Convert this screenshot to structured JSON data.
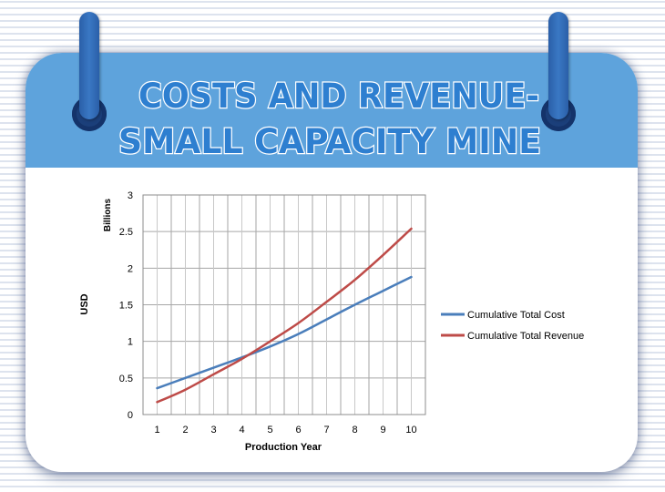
{
  "title": {
    "line1": "COSTS AND REVENUE-",
    "line2": "SMALL CAPACITY MINE"
  },
  "colors": {
    "header": "#5ea3dc",
    "title_fill": "#2e7fd0",
    "title_outline": "#ffffff",
    "cost_series": "#4a7ebb",
    "revenue_series": "#be4b48",
    "grid": "#a6a6a6"
  },
  "chart_data": {
    "type": "line",
    "title": "",
    "xlabel": "Production Year",
    "ylabel": "USD",
    "unit_label": "Billions",
    "x": [
      1,
      2,
      3,
      4,
      5,
      6,
      7,
      8,
      9,
      10
    ],
    "ylim": [
      0,
      3
    ],
    "yticks": [
      "0",
      "0.5",
      "1",
      "1.5",
      "2",
      "2.5",
      "3"
    ],
    "xticks": [
      "1",
      "2",
      "3",
      "4",
      "5",
      "6",
      "7",
      "8",
      "9",
      "10"
    ],
    "grid": true,
    "legend_position": "right",
    "series": [
      {
        "name": "Cumulative Total Cost",
        "color": "#4a7ebb",
        "values": [
          0.36,
          0.5,
          0.64,
          0.78,
          0.93,
          1.1,
          1.3,
          1.5,
          1.69,
          1.88
        ]
      },
      {
        "name": "Cumulative Total Revenue",
        "color": "#be4b48",
        "values": [
          0.17,
          0.34,
          0.55,
          0.76,
          1.0,
          1.25,
          1.54,
          1.84,
          2.18,
          2.54
        ]
      }
    ]
  }
}
